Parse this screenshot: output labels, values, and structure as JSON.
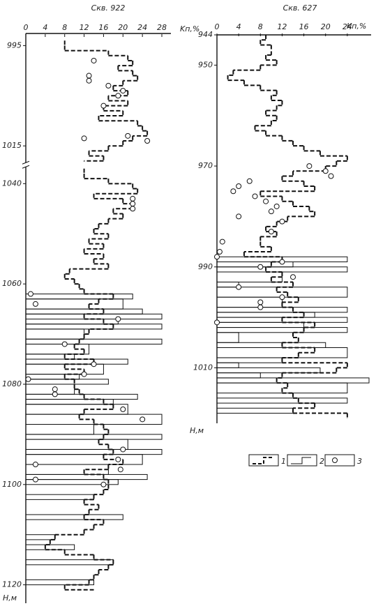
{
  "chart_data": [
    {
      "type": "well-log",
      "title": "Скв. 922",
      "xlabel": "Kп,%",
      "ylabel": "H,м",
      "xlim": [
        0,
        28
      ],
      "xticks": [
        0,
        4,
        8,
        12,
        16,
        20,
        24,
        28
      ],
      "ylim": [
        993,
        1122
      ],
      "yticks": [
        995,
        1015,
        1040,
        1060,
        1080,
        1100,
        1120
      ],
      "axis_break": [
        1018,
        1037
      ],
      "curve": {
        "x": [
          994,
          995,
          996,
          997,
          998,
          999,
          1000,
          1001,
          1002,
          1003,
          1004,
          1005,
          1006,
          1007,
          1008,
          1009,
          1010,
          1011,
          1012,
          1013,
          1014,
          1015,
          1016,
          1017,
          1018,
          1019,
          1037,
          1038,
          1039,
          1040,
          1041,
          1042,
          1043,
          1044,
          1045,
          1046,
          1047,
          1048,
          1049,
          1050,
          1051,
          1052,
          1053,
          1054,
          1055,
          1056,
          1057,
          1058,
          1059,
          1060,
          1061,
          1062,
          1063,
          1064,
          1065,
          1066,
          1067,
          1068,
          1069,
          1070,
          1071,
          1072,
          1073,
          1074,
          1075,
          1076,
          1077,
          1078,
          1079,
          1080,
          1081,
          1082,
          1083,
          1084,
          1085,
          1086,
          1087,
          1088,
          1089,
          1090,
          1091,
          1092,
          1093,
          1094,
          1095,
          1096,
          1097,
          1098,
          1099,
          1100,
          1101,
          1102,
          1103,
          1104,
          1105,
          1106,
          1107,
          1108,
          1109,
          1110,
          1111,
          1112,
          1113,
          1114,
          1115,
          1116,
          1117,
          1118,
          1119,
          1120,
          1121
        ],
        "values": [
          8,
          8,
          17,
          21,
          22,
          19,
          22,
          23,
          20,
          18,
          21,
          17,
          21,
          16,
          20,
          15,
          23,
          24,
          25,
          22,
          20,
          17,
          13,
          16,
          12,
          null,
          12,
          12,
          17,
          22,
          23,
          14,
          20,
          22,
          18,
          20,
          17,
          15,
          14,
          17,
          13,
          16,
          12,
          16,
          14,
          17,
          9,
          8,
          10,
          11,
          12,
          18,
          15,
          13,
          16,
          12,
          16,
          18,
          13,
          12,
          11,
          10,
          12,
          8,
          14,
          8,
          12,
          8,
          10,
          10,
          11,
          12,
          16,
          18,
          12,
          11,
          14,
          16,
          17,
          16,
          15,
          17,
          18,
          16,
          20,
          17,
          12,
          16,
          17,
          17,
          16,
          14,
          12,
          15,
          13,
          12,
          16,
          14,
          12,
          6,
          5,
          4,
          8,
          14,
          18,
          17,
          15,
          14,
          13,
          8,
          14
        ]
      },
      "intervals": {
        "top": [
          1062,
          1063,
          1065,
          1066,
          1067,
          1068,
          1069,
          1071,
          1072,
          1074,
          1075,
          1076,
          1078,
          1079,
          1080,
          1082,
          1083,
          1084,
          1086,
          1088,
          1090,
          1091,
          1093,
          1094,
          1096,
          1098,
          1099,
          1102,
          1106,
          1110,
          1112,
          1115,
          1119
        ],
        "bottom": [
          1063,
          1065,
          1066,
          1067,
          1068,
          1069,
          1071,
          1072,
          1074,
          1075,
          1076,
          1078,
          1079,
          1080,
          1082,
          1083,
          1084,
          1086,
          1088,
          1090,
          1091,
          1093,
          1094,
          1096,
          1098,
          1099,
          1100,
          1103,
          1107,
          1111,
          1113,
          1116,
          1120
        ],
        "values": [
          22,
          20,
          24,
          28,
          19,
          28,
          12,
          28,
          13,
          10,
          21,
          16,
          11,
          17,
          10,
          23,
          18,
          21,
          28,
          14,
          28,
          21,
          28,
          24,
          17,
          25,
          19,
          14,
          20,
          6,
          10,
          18,
          14
        ]
      },
      "points": {
        "x": [
          998,
          1001,
          1002,
          1003,
          1004,
          1005,
          1007,
          1013,
          1013.5,
          1014,
          1043,
          1044,
          1045,
          1062,
          1064,
          1067,
          1072,
          1076,
          1078,
          1079,
          1081,
          1082,
          1085,
          1087,
          1093,
          1095,
          1096,
          1097,
          1099,
          1100
        ],
        "values": [
          14,
          13,
          13,
          17,
          20,
          19,
          16,
          21,
          12,
          25,
          22,
          22,
          22,
          1,
          2,
          19,
          8,
          14,
          12,
          0.5,
          6,
          6,
          20,
          24,
          20,
          19,
          2,
          19.5,
          2,
          16
        ]
      }
    },
    {
      "type": "well-log",
      "title": "Скв. 627",
      "xlabel": "Kп,%",
      "ylabel": "H,м",
      "xlim": [
        0,
        28
      ],
      "xticks": [
        0,
        4,
        8,
        12,
        16,
        20,
        24
      ],
      "ylim": [
        944,
        1021
      ],
      "yticks": [
        944,
        950,
        970,
        990,
        1010
      ],
      "curve": {
        "x": [
          944,
          945,
          946,
          948,
          949,
          950,
          951,
          952,
          953,
          954,
          955,
          956,
          957,
          958,
          959,
          960,
          961,
          962,
          963,
          964,
          965,
          966,
          967,
          968,
          969,
          970,
          971,
          972,
          973,
          974,
          975,
          976,
          977,
          978,
          979,
          980,
          981,
          982,
          983,
          984,
          985,
          986,
          987,
          988,
          989,
          990,
          991,
          992,
          993,
          994,
          995,
          996,
          997,
          998,
          999,
          1000,
          1001,
          1002,
          1003,
          1004,
          1005,
          1006,
          1007,
          1008,
          1009,
          1010,
          1011,
          1012,
          1013,
          1014,
          1015,
          1016,
          1017,
          1018,
          1019,
          1020
        ],
        "values": [
          9,
          8,
          10,
          9,
          11,
          8,
          3,
          2,
          5,
          8,
          11,
          10,
          12,
          11,
          9,
          11,
          10,
          7,
          9,
          12,
          14,
          16,
          19,
          24,
          22,
          20,
          14,
          12,
          16,
          18,
          8,
          12,
          14,
          17,
          18,
          13,
          11,
          9,
          11,
          8,
          8,
          10,
          5,
          12,
          10,
          9,
          12,
          10,
          14,
          11,
          13,
          15,
          12,
          14,
          16,
          12,
          18,
          16,
          14,
          15,
          12,
          18,
          15,
          12,
          24,
          22,
          12,
          11,
          13,
          12,
          14,
          15,
          18,
          14,
          24,
          24
        ]
      },
      "intervals": {
        "top": [
          988,
          989,
          990,
          991,
          993,
          994,
          996,
          998,
          999,
          1000,
          1001,
          1002,
          1003,
          1005,
          1006,
          1008,
          1009,
          1010,
          1011,
          1012,
          1013,
          1016,
          1018
        ],
        "bottom": [
          989,
          990,
          991,
          993,
          994,
          996,
          998,
          999,
          1000,
          1001,
          1002,
          1003,
          1005,
          1006,
          1008,
          1009,
          1010,
          1011,
          1012,
          1013,
          1015,
          1017,
          1019
        ],
        "values": [
          24,
          14,
          24,
          12,
          4,
          24,
          12,
          24,
          18,
          24,
          16,
          24,
          4,
          20,
          24,
          12,
          4,
          19,
          8,
          28,
          24,
          24,
          14
        ]
      },
      "points": {
        "x": [
          970,
          971,
          972,
          973,
          974,
          975,
          976,
          977,
          978,
          979,
          980,
          981,
          983,
          985,
          987,
          988,
          989,
          990,
          992,
          994,
          996,
          997,
          998,
          1001
        ],
        "values": [
          17,
          20,
          21,
          6,
          4,
          3,
          7,
          9,
          11,
          10,
          4,
          12,
          10,
          1,
          0.5,
          0,
          12,
          8,
          14,
          4,
          12,
          8,
          8,
          0
        ]
      }
    }
  ],
  "legend": {
    "labels": [
      "1",
      "2",
      "3"
    ]
  }
}
